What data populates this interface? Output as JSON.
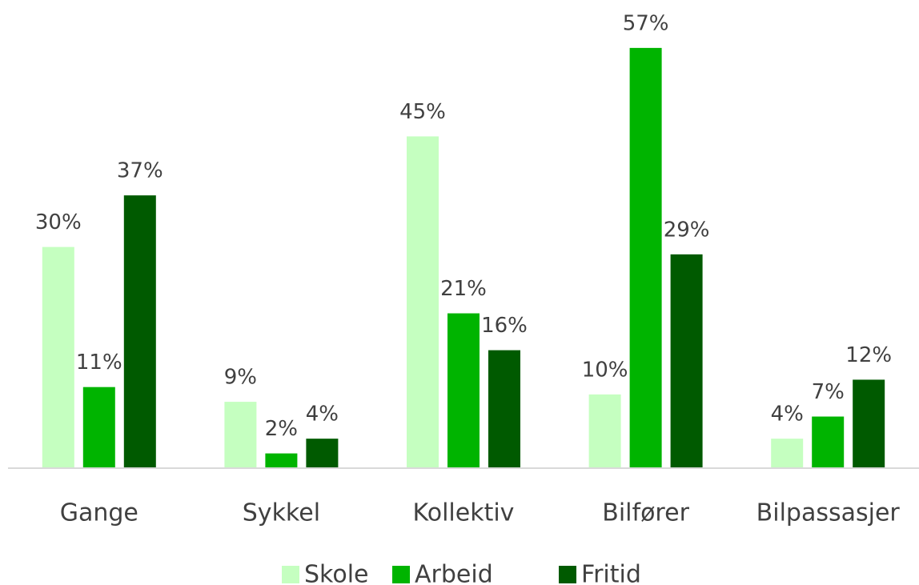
{
  "chart_data": {
    "type": "bar",
    "categories": [
      "Gange",
      "Sykkel",
      "Kollektiv",
      "Bilfører",
      "Bilpassasjer"
    ],
    "series": [
      {
        "name": "Skole",
        "color": "#c5ffc0",
        "values": [
          30,
          9,
          45,
          10,
          4
        ],
        "value_labels": [
          "30%",
          "9%",
          "45%",
          "10%",
          "4%"
        ]
      },
      {
        "name": "Arbeid",
        "color": "#00b400",
        "values": [
          11,
          2,
          21,
          57,
          7
        ],
        "value_labels": [
          "11%",
          "2%",
          "21%",
          "57%",
          "7%"
        ]
      },
      {
        "name": "Fritid",
        "color": "#005a00",
        "values": [
          37,
          4,
          16,
          29,
          12
        ],
        "value_labels": [
          "37%",
          "4%",
          "16%",
          "29%",
          "12%"
        ]
      }
    ],
    "ylim": [
      0,
      63.5
    ],
    "legend": "bottom"
  }
}
